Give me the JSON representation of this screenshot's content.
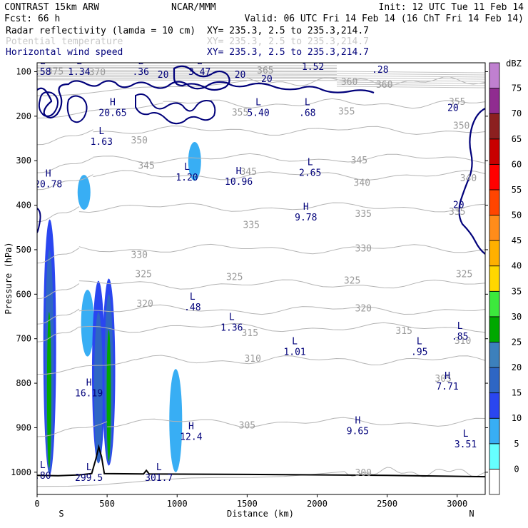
{
  "header": {
    "model": "CONTRAST 15km ARW",
    "org": "NCAR/MMM",
    "init": "Init: 12 UTC Tue 11 Feb 14",
    "fcst": "Fcst:   66 h",
    "valid": "Valid: 06 UTC Fri 14 Feb 14 (16 ChT Fri 14 Feb 14)",
    "fields": [
      {
        "name": "Radar reflectivity (lamda = 10 cm)",
        "xsec": "XY= 235.3,  2.5 to 235.3,214.7",
        "color": "#00007a"
      },
      {
        "name": "Potential temperature",
        "xsec": "XY= 235.3,  2.5 to 235.3,214.7",
        "color": "#c8c8c8"
      },
      {
        "name": "Horizontal wind speed",
        "xsec": "XY= 235.3,  2.5 to 235.3,214.7",
        "color": "#00007a"
      }
    ]
  },
  "chart_data": {
    "type": "cross-section",
    "xlabel": "Distance (km)",
    "ylabel": "Pressure (hPa)",
    "xlim": [
      0,
      3200
    ],
    "ylim": [
      1050,
      80
    ],
    "x_ticks": [
      0,
      500,
      1000,
      1500,
      2000,
      2500,
      3000
    ],
    "y_ticks": [
      100,
      200,
      300,
      400,
      500,
      600,
      700,
      800,
      900,
      1000
    ],
    "x_end_labels": {
      "left": "S",
      "right": "N"
    },
    "theta_contours": [
      {
        "value": "300",
        "p": 1000,
        "x0": 2200
      },
      {
        "value": "305",
        "p": 888,
        "x0": 500
      },
      {
        "value": "310",
        "p": 748,
        "x0": 700
      },
      {
        "value": "315",
        "p": 675,
        "x0": 300
      },
      {
        "value": "320",
        "p": 635,
        "x0": 300
      },
      {
        "value": "325",
        "p": 578,
        "x0": 300
      },
      {
        "value": "330",
        "p": 498,
        "x0": 300
      },
      {
        "value": "335",
        "p": 405,
        "x0": 300
      },
      {
        "value": "340",
        "p": 333,
        "x0": 400
      },
      {
        "value": "345",
        "p": 295,
        "x0": 400
      },
      {
        "value": "350",
        "p": 232,
        "x0": 400
      },
      {
        "value": "355",
        "p": 172,
        "x0": 900
      },
      {
        "value": "360",
        "p": 122,
        "x0": 1500
      }
    ],
    "theta_labels": [
      {
        "text": "300",
        "x": 2330,
        "p": 1002
      },
      {
        "text": "305",
        "x": 1500,
        "p": 895
      },
      {
        "text": "305",
        "x": 2900,
        "p": 790
      },
      {
        "text": "310",
        "x": 1540,
        "p": 745
      },
      {
        "text": "310",
        "x": 3040,
        "p": 705
      },
      {
        "text": "315",
        "x": 1520,
        "p": 688
      },
      {
        "text": "315",
        "x": 2620,
        "p": 683
      },
      {
        "text": "320",
        "x": 770,
        "p": 622
      },
      {
        "text": "320",
        "x": 2330,
        "p": 632
      },
      {
        "text": "325",
        "x": 760,
        "p": 555
      },
      {
        "text": "325",
        "x": 1410,
        "p": 562
      },
      {
        "text": "325",
        "x": 2250,
        "p": 570
      },
      {
        "text": "325",
        "x": 3050,
        "p": 555
      },
      {
        "text": "330",
        "x": 730,
        "p": 512
      },
      {
        "text": "330",
        "x": 2330,
        "p": 498
      },
      {
        "text": "335",
        "x": 1530,
        "p": 445
      },
      {
        "text": "335",
        "x": 2330,
        "p": 420
      },
      {
        "text": "335",
        "x": 3000,
        "p": 415
      },
      {
        "text": "340",
        "x": 2320,
        "p": 350
      },
      {
        "text": "340",
        "x": 3080,
        "p": 340
      },
      {
        "text": "345",
        "x": 780,
        "p": 312
      },
      {
        "text": "345",
        "x": 1510,
        "p": 325
      },
      {
        "text": "345",
        "x": 2300,
        "p": 300
      },
      {
        "text": "350",
        "x": 730,
        "p": 255
      },
      {
        "text": "350",
        "x": 3030,
        "p": 222
      },
      {
        "text": "355",
        "x": 1450,
        "p": 192
      },
      {
        "text": "355",
        "x": 2210,
        "p": 190
      },
      {
        "text": "355",
        "x": 3000,
        "p": 168
      },
      {
        "text": "360",
        "x": 2230,
        "p": 123
      },
      {
        "text": "360",
        "x": 2480,
        "p": 130
      },
      {
        "text": "365",
        "x": 1630,
        "p": 98
      },
      {
        "text": "370",
        "x": 430,
        "p": 102
      },
      {
        "text": "375",
        "x": 130,
        "p": 100
      }
    ],
    "wind_labels": [
      {
        "text": "20",
        "x": 900,
        "p": 107
      },
      {
        "text": "20",
        "x": 1450,
        "p": 107
      },
      {
        "text": "20",
        "x": 1640,
        "p": 117
      },
      {
        "text": "20",
        "x": 2970,
        "p": 182
      },
      {
        "text": "20",
        "x": 3010,
        "p": 400
      }
    ],
    "highs_lows": [
      {
        "type": "L",
        "value": ".58",
        "x": 40,
        "p": 93
      },
      {
        "type": "L",
        "value": "1.34",
        "x": 300,
        "p": 93
      },
      {
        "type": "L",
        "value": ".36",
        "x": 740,
        "p": 93
      },
      {
        "type": "L",
        "value": "3.47",
        "x": 1160,
        "p": 93
      },
      {
        "type": "L",
        "value": "1.52",
        "x": 1970,
        "p": 82
      },
      {
        "type": "L",
        "value": ".28",
        "x": 2450,
        "p": 88
      },
      {
        "type": "H",
        "value": "20.65",
        "x": 540,
        "p": 185
      },
      {
        "type": "L",
        "value": "5.40",
        "x": 1580,
        "p": 185
      },
      {
        "type": "L",
        "value": ".68",
        "x": 1930,
        "p": 185
      },
      {
        "type": "L",
        "value": "1.63",
        "x": 460,
        "p": 250
      },
      {
        "type": "L",
        "value": "1.20",
        "x": 1070,
        "p": 330
      },
      {
        "type": "H",
        "value": "10.96",
        "x": 1440,
        "p": 340
      },
      {
        "type": "L",
        "value": "2.65",
        "x": 1950,
        "p": 320
      },
      {
        "type": "H",
        "value": "20.78",
        "x": 80,
        "p": 345
      },
      {
        "type": "H",
        "value": "9.78",
        "x": 1920,
        "p": 420
      },
      {
        "type": "L",
        "value": ".48",
        "x": 1110,
        "p": 622
      },
      {
        "type": "L",
        "value": "1.36",
        "x": 1390,
        "p": 668
      },
      {
        "type": "L",
        "value": "1.01",
        "x": 1840,
        "p": 722
      },
      {
        "type": "L",
        "value": ".95",
        "x": 2730,
        "p": 722
      },
      {
        "type": "L",
        "value": ".85",
        "x": 3020,
        "p": 688
      },
      {
        "type": "H",
        "value": "7.71",
        "x": 2930,
        "p": 800
      },
      {
        "type": "H",
        "value": "16.19",
        "x": 370,
        "p": 815
      },
      {
        "type": "H",
        "value": "9.65",
        "x": 2290,
        "p": 900
      },
      {
        "type": "H",
        "value": "12.4",
        "x": 1100,
        "p": 913
      },
      {
        "type": "L",
        "value": "3.51",
        "x": 3060,
        "p": 930
      },
      {
        "type": "L",
        "value": ".80",
        "x": 40,
        "p": 1000
      },
      {
        "type": "L",
        "value": "299.5",
        "x": 370,
        "p": 1005
      },
      {
        "type": "L",
        "value": "301.7",
        "x": 870,
        "p": 1005
      }
    ],
    "reflectivity_cells": [
      {
        "x": 335,
        "p_top": 332,
        "p_bot": 410,
        "dbz": 7
      },
      {
        "x": 1125,
        "p_top": 258,
        "p_bot": 345,
        "dbz": 7
      },
      {
        "x": 990,
        "p_top": 768,
        "p_bot": 1000,
        "dbz": 7
      },
      {
        "x": 90,
        "p_top": 432,
        "p_bot": 1005,
        "dbz": 12
      },
      {
        "x": 88,
        "p_top": 500,
        "p_bot": 1000,
        "dbz": 17
      },
      {
        "x": 86,
        "p_top": 640,
        "p_bot": 990,
        "dbz": 27
      },
      {
        "x": 360,
        "p_top": 590,
        "p_bot": 740,
        "dbz": 7
      },
      {
        "x": 438,
        "p_top": 570,
        "p_bot": 980,
        "dbz": 12
      },
      {
        "x": 438,
        "p_top": 640,
        "p_bot": 980,
        "dbz": 17
      },
      {
        "x": 512,
        "p_top": 565,
        "p_bot": 985,
        "dbz": 12
      },
      {
        "x": 512,
        "p_top": 600,
        "p_bot": 980,
        "dbz": 17
      },
      {
        "x": 512,
        "p_top": 680,
        "p_bot": 975,
        "dbz": 27
      }
    ],
    "terrain": [
      [
        0,
        1007
      ],
      [
        150,
        1008
      ],
      [
        300,
        1006
      ],
      [
        390,
        1003
      ],
      [
        420,
        970
      ],
      [
        440,
        943
      ],
      [
        460,
        965
      ],
      [
        480,
        1003
      ],
      [
        760,
        1004
      ],
      [
        780,
        996
      ],
      [
        800,
        1004
      ],
      [
        1500,
        1005
      ],
      [
        2500,
        1007
      ],
      [
        3200,
        1010
      ]
    ],
    "colorbar": {
      "unit": "dBZ",
      "levels": [
        0,
        5,
        10,
        15,
        20,
        25,
        30,
        35,
        40,
        45,
        50,
        55,
        60,
        65,
        70,
        75
      ],
      "colors": [
        "#ffffff",
        "#66ffff",
        "#38aef4",
        "#2a46f0",
        "#2e66c4",
        "#3c80bc",
        "#00a800",
        "#3ce83c",
        "#ffd700",
        "#ffb000",
        "#ff8c1a",
        "#ff4500",
        "#ff0000",
        "#c80000",
        "#8c2020",
        "#902c90",
        "#c080d0"
      ]
    }
  }
}
